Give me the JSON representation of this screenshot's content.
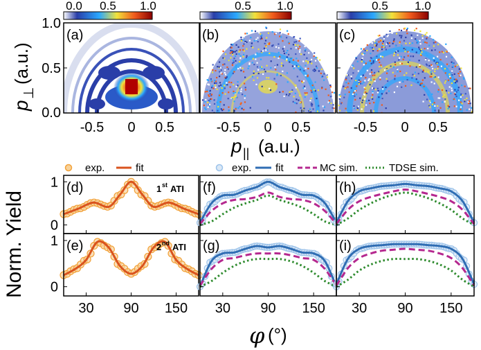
{
  "colorbar": {
    "a": {
      "ticks": [
        "0.0",
        "0.5",
        "1.0"
      ]
    },
    "b": {
      "ticks": [
        "0.5",
        "1.0"
      ]
    },
    "c": {
      "ticks": [
        "0.5",
        "1.0"
      ]
    },
    "colors": [
      "#ffffff",
      "#2a3ea8",
      "#2aa8ff",
      "#f2e23a",
      "#f05a1c",
      "#8a0000"
    ]
  },
  "top_row": {
    "ylabel_main": "p",
    "ylabel_sub": "⊥",
    "ylabel_unit": "(a.u.)",
    "xlabel_main": "p",
    "xlabel_sub": "||",
    "xlabel_unit": "(a.u.)",
    "yticks": [
      "1.0",
      "0.5",
      "0.0"
    ],
    "xticks": [
      "-0.5",
      "0",
      "0.5"
    ],
    "panels": [
      "(a)",
      "(b)",
      "(c)"
    ]
  },
  "bottom": {
    "ylabel": "Norm. Yield",
    "xlabel_symbol": "φ",
    "xlabel_unit": "(°)",
    "yticks": [
      "1",
      "0"
    ],
    "xticks": [
      "30",
      "90",
      "150"
    ],
    "ati1_main": "1",
    "ati1_sup": "st",
    "ati1_tail": "ATI",
    "ati2_main": "2",
    "ati2_sup": "nd",
    "ati2_tail": "ATI",
    "legend_left": {
      "exp": "exp.",
      "fit": "fit"
    },
    "legend_right": {
      "exp": "exp.",
      "fit": "fit",
      "mc": "MC sim.",
      "tdse": "TDSE sim."
    },
    "colors": {
      "exp_orange": "#f2a23a",
      "fit_orange": "#d9531e",
      "exp_blue": "#9cc3ea",
      "fit_blue": "#2f6db3",
      "mc": "#b5288f",
      "tdse": "#2e8b2e"
    }
  },
  "chart_data": [
    {
      "panel": "(a)",
      "type": "heatmap",
      "xlabel": "p|| (a.u.)",
      "ylabel": "p⊥ (a.u.)",
      "xlim": [
        -1,
        1
      ],
      "ylim": [
        0,
        1
      ],
      "features": "central maximum near (0, 0.3) with concentric ATI rings"
    },
    {
      "panel": "(b)",
      "type": "heatmap",
      "xlabel": "p|| (a.u.)",
      "ylabel": "p⊥ (a.u.)",
      "xlim": [
        -1,
        1
      ],
      "ylim": [
        0,
        1
      ]
    },
    {
      "panel": "(c)",
      "type": "heatmap",
      "xlabel": "p|| (a.u.)",
      "ylabel": "p⊥ (a.u.)",
      "xlim": [
        -1,
        1
      ],
      "ylim": [
        0,
        1
      ]
    },
    {
      "panel": "(d)",
      "type": "line",
      "title": "1st ATI",
      "xlabel": "φ (°)",
      "ylabel": "Norm. Yield",
      "xlim": [
        0,
        180
      ],
      "ylim": [
        -0.2,
        1.15
      ],
      "x": [
        0,
        20,
        40,
        60,
        75,
        90,
        105,
        120,
        140,
        160,
        180
      ],
      "series": [
        {
          "name": "exp.",
          "values": [
            0.25,
            0.38,
            0.52,
            0.42,
            0.7,
            1.0,
            0.7,
            0.42,
            0.52,
            0.38,
            0.25
          ]
        },
        {
          "name": "fit",
          "values": [
            0.25,
            0.38,
            0.52,
            0.42,
            0.7,
            1.0,
            0.7,
            0.42,
            0.52,
            0.38,
            0.25
          ]
        }
      ]
    },
    {
      "panel": "(e)",
      "type": "line",
      "title": "2nd ATI",
      "xlabel": "φ (°)",
      "ylabel": "Norm. Yield",
      "xlim": [
        0,
        180
      ],
      "ylim": [
        -0.2,
        1.15
      ],
      "x": [
        0,
        15,
        30,
        45,
        60,
        75,
        90,
        105,
        120,
        135,
        150,
        165,
        180
      ],
      "series": [
        {
          "name": "exp.",
          "values": [
            0.25,
            0.38,
            0.58,
            0.97,
            0.85,
            0.45,
            0.28,
            0.45,
            0.85,
            0.97,
            0.58,
            0.38,
            0.25
          ]
        },
        {
          "name": "fit",
          "values": [
            0.25,
            0.38,
            0.58,
            0.97,
            0.85,
            0.45,
            0.28,
            0.45,
            0.85,
            0.97,
            0.58,
            0.38,
            0.25
          ]
        }
      ]
    },
    {
      "panel": "(f)",
      "type": "line",
      "xlabel": "φ (°)",
      "xlim": [
        0,
        180
      ],
      "ylim": [
        -0.2,
        1.15
      ],
      "x": [
        0,
        15,
        30,
        45,
        60,
        75,
        90,
        105,
        120,
        135,
        150,
        165,
        180
      ],
      "series": [
        {
          "name": "exp.",
          "values": [
            0.05,
            0.5,
            0.68,
            0.7,
            0.8,
            0.88,
            1.0,
            0.88,
            0.8,
            0.7,
            0.68,
            0.5,
            0.05
          ]
        },
        {
          "name": "fit",
          "values": [
            0.05,
            0.5,
            0.68,
            0.7,
            0.8,
            0.88,
            1.0,
            0.88,
            0.8,
            0.7,
            0.68,
            0.5,
            0.05
          ]
        },
        {
          "name": "MC sim.",
          "values": [
            0.02,
            0.32,
            0.5,
            0.58,
            0.6,
            0.65,
            0.75,
            0.65,
            0.6,
            0.58,
            0.5,
            0.32,
            0.02
          ]
        },
        {
          "name": "TDSE sim.",
          "values": [
            0.0,
            0.08,
            0.25,
            0.4,
            0.5,
            0.58,
            0.68,
            0.58,
            0.5,
            0.4,
            0.25,
            0.08,
            0.0
          ]
        }
      ]
    },
    {
      "panel": "(g)",
      "type": "line",
      "xlabel": "φ (°)",
      "xlim": [
        0,
        180
      ],
      "ylim": [
        -0.2,
        1.15
      ],
      "x": [
        0,
        15,
        30,
        45,
        60,
        75,
        90,
        105,
        120,
        135,
        150,
        165,
        180
      ],
      "series": [
        {
          "name": "exp.",
          "values": [
            0.0,
            0.55,
            0.72,
            0.74,
            0.82,
            0.88,
            0.85,
            0.88,
            0.82,
            0.74,
            0.72,
            0.55,
            0.0
          ]
        },
        {
          "name": "fit",
          "values": [
            0.0,
            0.55,
            0.72,
            0.74,
            0.82,
            0.88,
            0.85,
            0.88,
            0.82,
            0.74,
            0.72,
            0.55,
            0.0
          ]
        },
        {
          "name": "MC sim.",
          "values": [
            0.02,
            0.38,
            0.58,
            0.62,
            0.68,
            0.72,
            0.72,
            0.72,
            0.68,
            0.62,
            0.58,
            0.38,
            0.02
          ]
        },
        {
          "name": "TDSE sim.",
          "values": [
            0.0,
            0.12,
            0.3,
            0.45,
            0.55,
            0.6,
            0.6,
            0.6,
            0.55,
            0.45,
            0.3,
            0.12,
            0.0
          ]
        }
      ]
    },
    {
      "panel": "(h)",
      "type": "line",
      "xlabel": "φ (°)",
      "xlim": [
        0,
        180
      ],
      "ylim": [
        -0.2,
        1.15
      ],
      "x": [
        0,
        15,
        30,
        45,
        60,
        75,
        90,
        105,
        120,
        135,
        150,
        165,
        180
      ],
      "series": [
        {
          "name": "exp.",
          "values": [
            0.05,
            0.55,
            0.78,
            0.85,
            0.9,
            0.92,
            0.95,
            0.92,
            0.9,
            0.85,
            0.78,
            0.55,
            0.05
          ]
        },
        {
          "name": "fit",
          "values": [
            0.05,
            0.55,
            0.78,
            0.85,
            0.9,
            0.92,
            0.95,
            0.92,
            0.9,
            0.85,
            0.78,
            0.55,
            0.05
          ]
        },
        {
          "name": "MC sim.",
          "values": [
            0.02,
            0.35,
            0.55,
            0.65,
            0.72,
            0.78,
            0.82,
            0.78,
            0.72,
            0.65,
            0.55,
            0.35,
            0.02
          ]
        },
        {
          "name": "TDSE sim.",
          "values": [
            0.0,
            0.15,
            0.35,
            0.5,
            0.62,
            0.7,
            0.75,
            0.7,
            0.62,
            0.5,
            0.35,
            0.15,
            0.0
          ]
        }
      ]
    },
    {
      "panel": "(i)",
      "type": "line",
      "xlabel": "φ (°)",
      "xlim": [
        0,
        180
      ],
      "ylim": [
        -0.2,
        1.15
      ],
      "x": [
        0,
        15,
        30,
        45,
        60,
        75,
        90,
        105,
        120,
        135,
        150,
        165,
        180
      ],
      "series": [
        {
          "name": "exp.",
          "values": [
            0.05,
            0.6,
            0.82,
            0.88,
            0.9,
            0.92,
            0.92,
            0.92,
            0.9,
            0.88,
            0.82,
            0.6,
            0.05
          ]
        },
        {
          "name": "fit",
          "values": [
            0.05,
            0.6,
            0.82,
            0.88,
            0.9,
            0.92,
            0.92,
            0.92,
            0.9,
            0.88,
            0.82,
            0.6,
            0.05
          ]
        },
        {
          "name": "MC sim.",
          "values": [
            0.02,
            0.4,
            0.62,
            0.72,
            0.78,
            0.8,
            0.82,
            0.8,
            0.78,
            0.72,
            0.62,
            0.4,
            0.02
          ]
        },
        {
          "name": "TDSE sim.",
          "values": [
            0.0,
            0.15,
            0.35,
            0.48,
            0.56,
            0.6,
            0.6,
            0.6,
            0.56,
            0.48,
            0.35,
            0.15,
            0.0
          ]
        }
      ]
    }
  ]
}
